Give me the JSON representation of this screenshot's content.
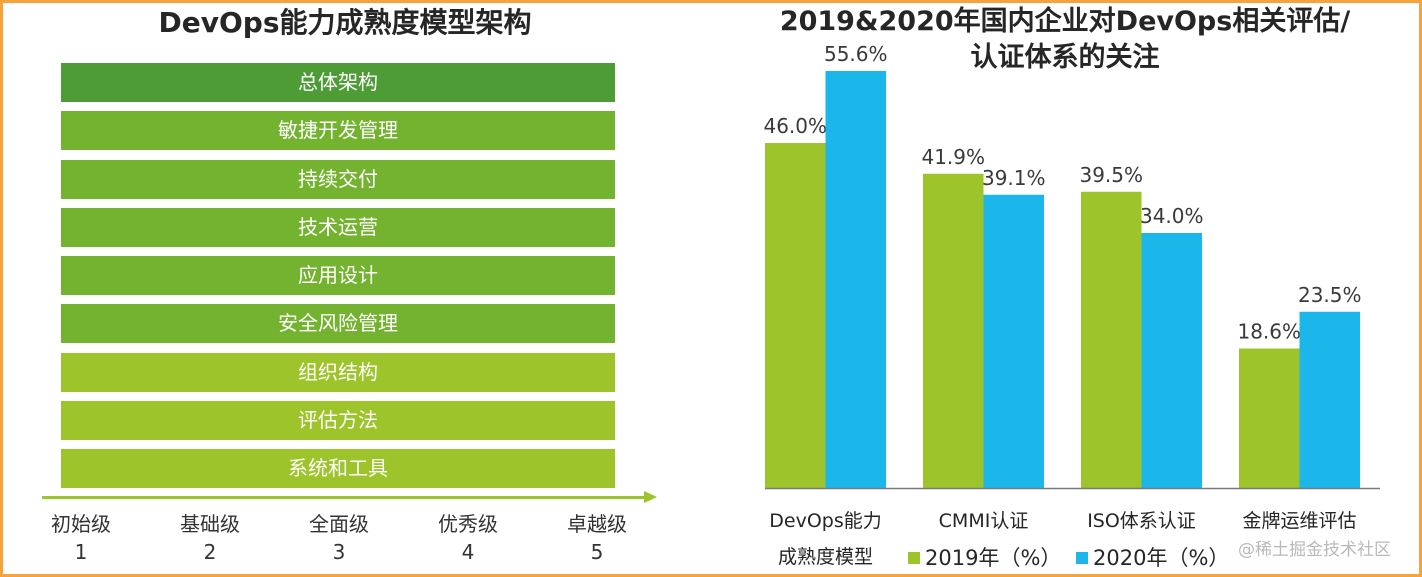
{
  "left_panel": {
    "title": "DevOps能力成熟度模型架构",
    "layers": [
      {
        "label": "总体架构",
        "color": "#4e9c36"
      },
      {
        "label": "敏捷开发管理",
        "color": "#74b330"
      },
      {
        "label": "持续交付",
        "color": "#74b330"
      },
      {
        "label": "技术运营",
        "color": "#74b330"
      },
      {
        "label": "应用设计",
        "color": "#74b330"
      },
      {
        "label": "安全风险管理",
        "color": "#74b330"
      },
      {
        "label": "组织结构",
        "color": "#9dc42a"
      },
      {
        "label": "评估方法",
        "color": "#9dc42a"
      },
      {
        "label": "系统和工具",
        "color": "#9dc42a"
      }
    ],
    "levels": [
      {
        "name": "初始级",
        "number": "1"
      },
      {
        "name": "基础级",
        "number": "2"
      },
      {
        "name": "全面级",
        "number": "3"
      },
      {
        "name": "优秀级",
        "number": "4"
      },
      {
        "name": "卓越级",
        "number": "5"
      }
    ],
    "arrow_color": "#9dc42a"
  },
  "chart_data": {
    "type": "bar",
    "title": "2019&2020年国内企业对DevOps相关评估/认证体系的关注",
    "title_lines": [
      "2019&2020年国内企业对DevOps相关评估/",
      "认证体系的关注"
    ],
    "categories": [
      "DevOps能力成熟度模型",
      "CMMI认证",
      "ISO体系认证",
      "金牌运维评估"
    ],
    "category_lines": [
      [
        "DevOps能力",
        "成熟度模型"
      ],
      [
        "CMMI认证"
      ],
      [
        "ISO体系认证"
      ],
      [
        "金牌运维评估"
      ]
    ],
    "series": [
      {
        "name": "2019年（%）",
        "color": "#9dc42a",
        "values": [
          46.0,
          41.9,
          39.5,
          18.6
        ],
        "labels": [
          "46.0%",
          "41.9%",
          "39.5%",
          "18.6%"
        ]
      },
      {
        "name": "2020年（%）",
        "color": "#1bb7ea",
        "values": [
          55.6,
          39.1,
          34.0,
          23.5
        ],
        "labels": [
          "55.6%",
          "39.1%",
          "34.0%",
          "23.5%"
        ]
      }
    ],
    "xlabel": "",
    "ylabel": "",
    "ylim": [
      0,
      55.6
    ],
    "grid": false,
    "legend_position": "bottom"
  },
  "watermark": "@稀土掘金技术社区",
  "frame_color": "#f6a33c"
}
